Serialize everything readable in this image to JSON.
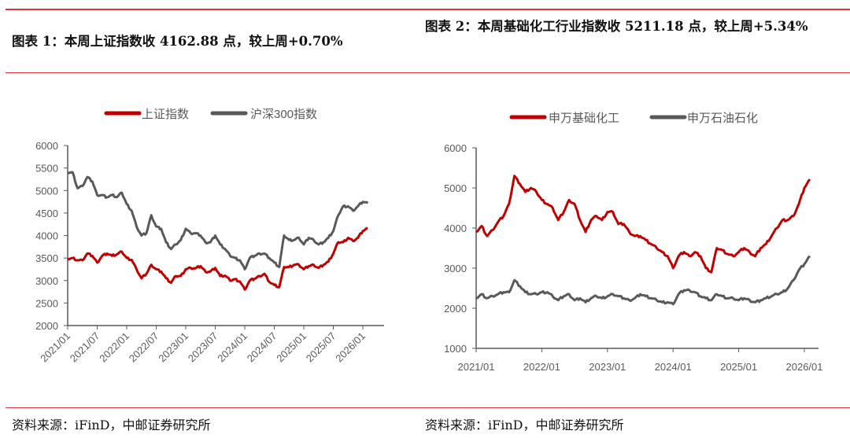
{
  "left": {
    "title": "图表 1：本周上证指数收 4162.88 点，较上周+0.70%",
    "source": "资料来源：iFinD，中邮证券研究所"
  },
  "right": {
    "title": "图表 2：本周基础化工行业指数收 5211.18 点，较上周+5.34%",
    "source": "资料来源：iFinD，中邮证券研究所"
  },
  "chart_data": [
    {
      "type": "line",
      "title": "",
      "ylim": [
        2000,
        6000
      ],
      "yticks": [
        2000,
        2500,
        3000,
        3500,
        4000,
        4500,
        5000,
        5500,
        6000
      ],
      "xticks": [
        "2021/01",
        "2021/07",
        "2022/01",
        "2022/07",
        "2023/01",
        "2023/07",
        "2024/01",
        "2024/07",
        "2025/01",
        "2025/07",
        "2026/01"
      ],
      "x_unit": "monthly from 2021/01",
      "legend": "top",
      "series": [
        {
          "name": "上证指数",
          "color": "#c00000",
          "values": [
            3480,
            3500,
            3450,
            3450,
            3600,
            3550,
            3400,
            3550,
            3600,
            3550,
            3580,
            3640,
            3500,
            3460,
            3250,
            3050,
            3150,
            3350,
            3250,
            3200,
            3050,
            2950,
            3100,
            3100,
            3250,
            3280,
            3270,
            3320,
            3200,
            3200,
            3280,
            3100,
            3110,
            3000,
            3030,
            2980,
            2800,
            3000,
            3040,
            3100,
            3150,
            2970,
            2900,
            2850,
            3300,
            3300,
            3350,
            3350,
            3250,
            3320,
            3350,
            3280,
            3350,
            3420,
            3600,
            3850,
            3850,
            3950,
            3880,
            3950,
            4100,
            4160
          ]
        },
        {
          "name": "沪深300指数",
          "color": "#595959",
          "values": [
            5400,
            5400,
            5050,
            5100,
            5300,
            5200,
            4900,
            4900,
            4850,
            4900,
            4850,
            4950,
            4700,
            4550,
            4200,
            4000,
            4050,
            4450,
            4200,
            4150,
            3850,
            3700,
            3800,
            3900,
            4150,
            4050,
            4050,
            4000,
            3850,
            3850,
            4000,
            3800,
            3700,
            3550,
            3500,
            3450,
            3250,
            3500,
            3550,
            3600,
            3600,
            3500,
            3400,
            3300,
            4000,
            3900,
            3900,
            3950,
            3800,
            3950,
            3900,
            3800,
            3850,
            3950,
            4100,
            4450,
            4650,
            4650,
            4550,
            4650,
            4750,
            4720
          ]
        }
      ]
    },
    {
      "type": "line",
      "title": "",
      "ylim": [
        1000,
        6000
      ],
      "yticks": [
        1000,
        2000,
        3000,
        4000,
        5000,
        6000
      ],
      "xticks": [
        "2021/01",
        "2022/01",
        "2023/01",
        "2024/01",
        "2025/01",
        "2026/01"
      ],
      "x_unit": "monthly from 2021/01",
      "legend": "top",
      "series": [
        {
          "name": "申万基础化工",
          "color": "#c00000",
          "values": [
            3900,
            4050,
            3800,
            3950,
            4150,
            4300,
            4600,
            5300,
            5100,
            4900,
            5000,
            4900,
            4700,
            4600,
            4500,
            4200,
            4400,
            4700,
            4600,
            4200,
            3900,
            4200,
            4300,
            4200,
            4400,
            4400,
            4100,
            4100,
            3900,
            3800,
            3800,
            3700,
            3600,
            3500,
            3400,
            3300,
            3000,
            3300,
            3400,
            3300,
            3400,
            3300,
            3000,
            2900,
            3500,
            3450,
            3350,
            3300,
            3400,
            3500,
            3400,
            3300,
            3500,
            3600,
            3800,
            4000,
            4200,
            4200,
            4300,
            4600,
            5000,
            5211
          ]
        },
        {
          "name": "申万石油石化",
          "color": "#595959",
          "values": [
            2250,
            2350,
            2250,
            2300,
            2350,
            2400,
            2400,
            2700,
            2550,
            2400,
            2350,
            2350,
            2400,
            2400,
            2300,
            2200,
            2300,
            2350,
            2200,
            2250,
            2150,
            2250,
            2300,
            2250,
            2300,
            2350,
            2300,
            2250,
            2200,
            2250,
            2350,
            2300,
            2250,
            2200,
            2150,
            2150,
            2100,
            2350,
            2450,
            2450,
            2400,
            2300,
            2250,
            2200,
            2350,
            2300,
            2250,
            2250,
            2200,
            2250,
            2200,
            2150,
            2200,
            2250,
            2300,
            2350,
            2400,
            2500,
            2700,
            2950,
            3100,
            3300
          ]
        }
      ]
    }
  ]
}
